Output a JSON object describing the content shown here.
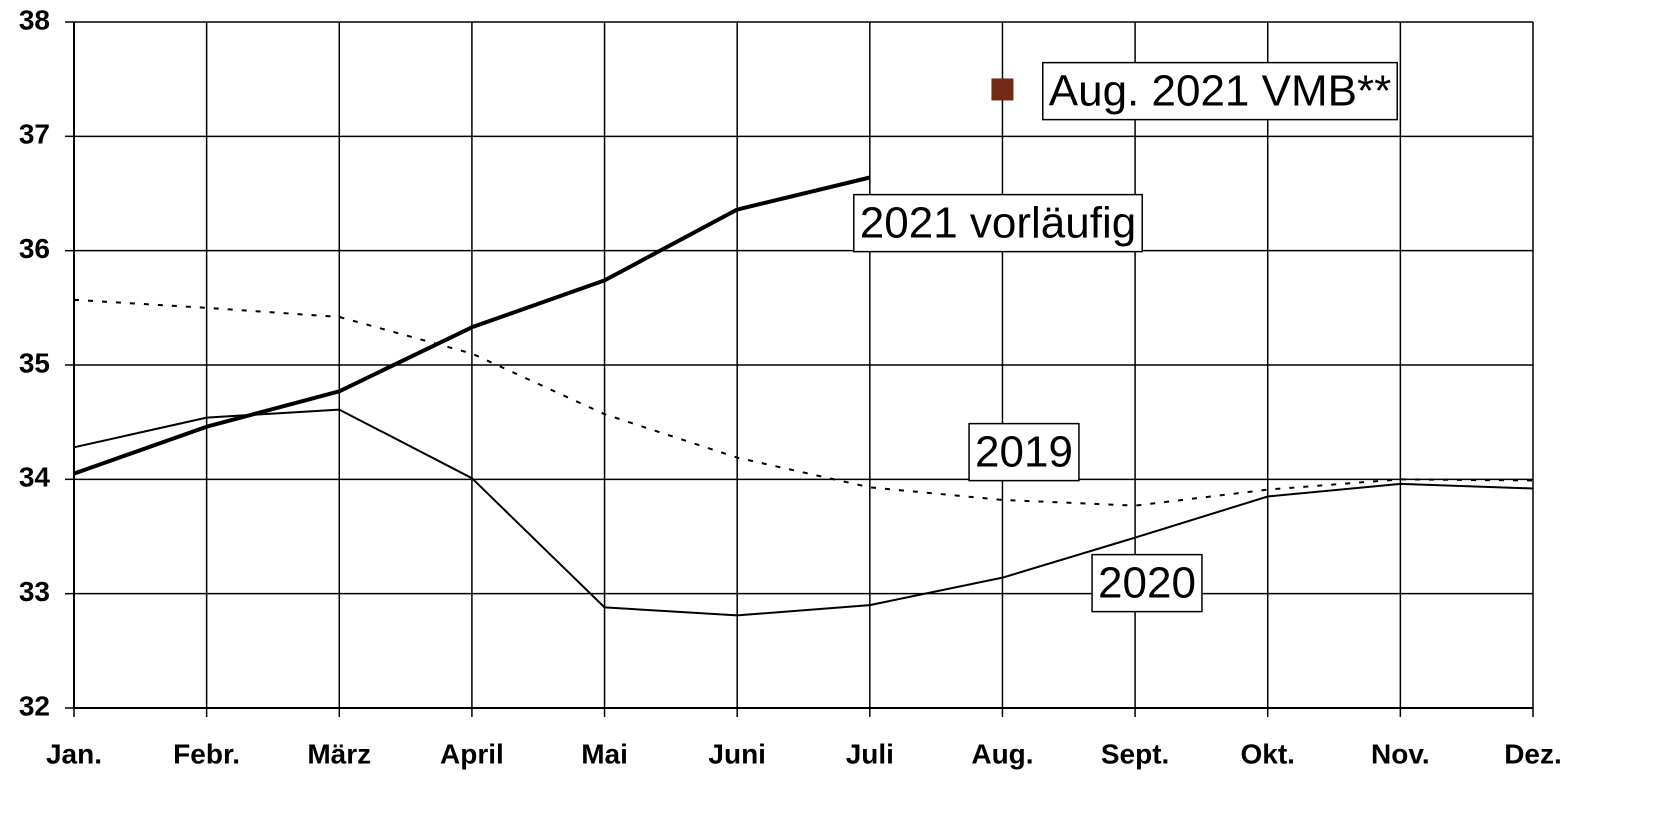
{
  "chart_data": {
    "type": "line",
    "categories": [
      "Jan.",
      "Febr.",
      "März",
      "April",
      "Mai",
      "Juni",
      "Juli",
      "Aug.",
      "Sept.",
      "Okt.",
      "Nov.",
      "Dez."
    ],
    "ylim": [
      32,
      38
    ],
    "yticks": [
      32,
      33,
      34,
      35,
      36,
      37,
      38
    ],
    "grid": true,
    "series": [
      {
        "name": "2021 vorläufig",
        "color": "#000000",
        "style": "thick",
        "values": [
          34.05,
          34.46,
          34.77,
          35.33,
          35.74,
          36.36,
          36.64,
          null,
          null,
          null,
          null,
          null
        ]
      },
      {
        "name": "2019",
        "color": "#000000",
        "style": "dotted",
        "values": [
          35.57,
          35.5,
          35.42,
          35.1,
          34.57,
          34.19,
          33.93,
          33.82,
          33.77,
          33.91,
          34.0,
          33.99
        ]
      },
      {
        "name": "2020",
        "color": "#000000",
        "style": "thin",
        "values": [
          34.28,
          34.54,
          34.61,
          34.01,
          32.88,
          32.81,
          32.9,
          33.14,
          33.49,
          33.85,
          33.96,
          33.92
        ]
      },
      {
        "name": "Aug. 2021 VMB**",
        "color": "#722a15",
        "style": "marker",
        "values": [
          null,
          null,
          null,
          null,
          null,
          null,
          null,
          37.41,
          null,
          null,
          null,
          null
        ]
      }
    ]
  }
}
